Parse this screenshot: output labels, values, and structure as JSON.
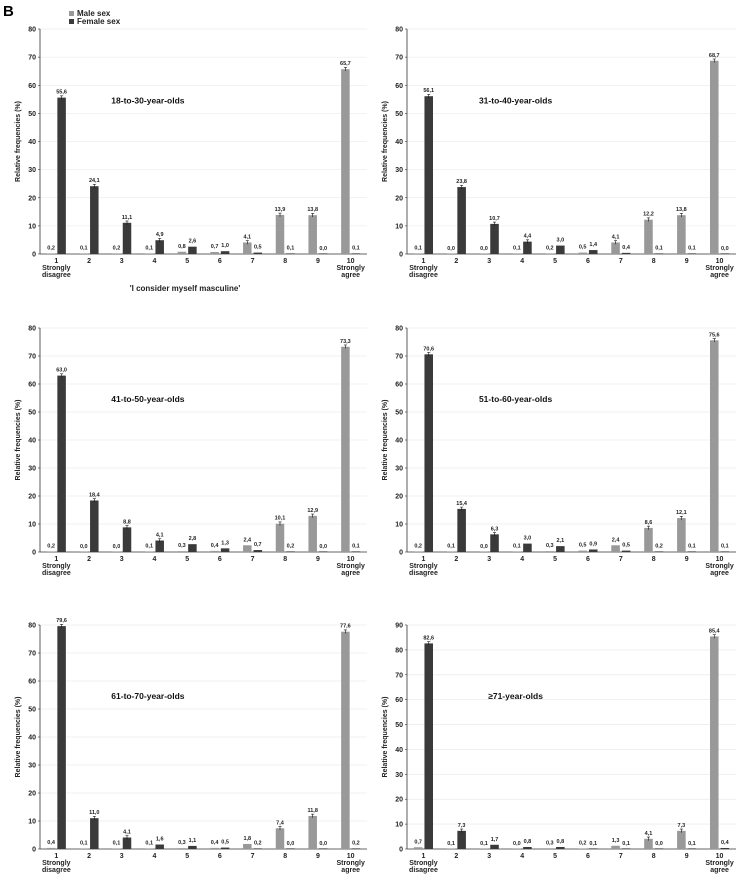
{
  "figure": {
    "panel_letter": "B",
    "legend": [
      {
        "label": "Male sex",
        "color": "#999999"
      },
      {
        "label": "Female sex",
        "color": "#3a3a3a"
      }
    ],
    "x_axis_label": "'I consider myself masculine'",
    "y_axis_label": "Relative frequencies (%)"
  },
  "chart_data": [
    {
      "type": "bar",
      "title": "18-to-30-year-olds",
      "categories": [
        "1",
        "2",
        "3",
        "4",
        "5",
        "6",
        "7",
        "8",
        "9",
        "10"
      ],
      "category_sublabels": {
        "1": "Strongly disagree",
        "10": "Strongly agree"
      },
      "series": [
        {
          "name": "Male sex",
          "labels": [
            "0,2",
            "0,1",
            "0,2",
            "0,1",
            "0,8",
            "0,7",
            "4,1",
            "13,9",
            "13,8",
            "65,7"
          ],
          "values": [
            0.2,
            0.1,
            0.2,
            0.1,
            0.8,
            0.7,
            4.1,
            13.9,
            13.8,
            65.7
          ]
        },
        {
          "name": "Female sex",
          "labels": [
            "55,6",
            "24,1",
            "11,1",
            "4,9",
            "2,6",
            "1,0",
            "0,5",
            "0,1",
            "0,0",
            "0,1"
          ],
          "values": [
            55.6,
            24.1,
            11.1,
            4.9,
            2.6,
            1.0,
            0.5,
            0.1,
            0.0,
            0.1
          ]
        }
      ],
      "ylabel": "Relative frequencies (%)",
      "ylim": [
        0,
        80
      ],
      "yticks": [
        "0",
        "10",
        "20",
        "30",
        "40",
        "50",
        "60",
        "70",
        "80"
      ]
    },
    {
      "type": "bar",
      "title": "31-to-40-year-olds",
      "categories": [
        "1",
        "2",
        "3",
        "4",
        "5",
        "6",
        "7",
        "8",
        "9",
        "10"
      ],
      "category_sublabels": {
        "1": "Strongly disagree",
        "10": "Strongly agree"
      },
      "series": [
        {
          "name": "Male sex",
          "labels": [
            "0,1",
            "0,0",
            "0,0",
            "0,1",
            "0,2",
            "0,5",
            "4,1",
            "12,2",
            "13,8",
            "68,7"
          ],
          "values": [
            0.1,
            0.0,
            0.0,
            0.1,
            0.2,
            0.5,
            4.1,
            12.2,
            13.8,
            68.7
          ]
        },
        {
          "name": "Female sex",
          "labels": [
            "56,1",
            "23,8",
            "10,7",
            "4,4",
            "3,0",
            "1,4",
            "0,4",
            "0,1",
            "0,1",
            "0,0"
          ],
          "values": [
            56.1,
            23.8,
            10.7,
            4.4,
            3.0,
            1.4,
            0.4,
            0.1,
            0.1,
            0.0
          ]
        }
      ],
      "ylabel": "Relative frequencies (%)",
      "ylim": [
        0,
        80
      ],
      "yticks": [
        "0",
        "10",
        "20",
        "30",
        "40",
        "50",
        "60",
        "70",
        "80"
      ]
    },
    {
      "type": "bar",
      "title": "41-to-50-year-olds",
      "categories": [
        "1",
        "2",
        "3",
        "4",
        "5",
        "6",
        "7",
        "8",
        "9",
        "10"
      ],
      "category_sublabels": {
        "1": "Strongly disagree",
        "10": "Strongly agree"
      },
      "series": [
        {
          "name": "Male sex",
          "labels": [
            "0,2",
            "0,0",
            "0,0",
            "0,1",
            "0,3",
            "0,4",
            "2,4",
            "10,1",
            "12,9",
            "73,3"
          ],
          "values": [
            0.2,
            0.0,
            0.0,
            0.1,
            0.3,
            0.4,
            2.4,
            10.1,
            12.9,
            73.3
          ]
        },
        {
          "name": "Female sex",
          "labels": [
            "63,0",
            "18,4",
            "8,8",
            "4,1",
            "2,8",
            "1,3",
            "0,7",
            "0,2",
            "0,0",
            "0,1"
          ],
          "values": [
            63.0,
            18.4,
            8.8,
            4.1,
            2.8,
            1.3,
            0.7,
            0.2,
            0.0,
            0.1
          ]
        }
      ],
      "ylabel": "Relative frequencies (%)",
      "ylim": [
        0,
        80
      ],
      "yticks": [
        "0",
        "10",
        "20",
        "30",
        "40",
        "50",
        "60",
        "70",
        "80"
      ]
    },
    {
      "type": "bar",
      "title": "51-to-60-year-olds",
      "categories": [
        "1",
        "2",
        "3",
        "4",
        "5",
        "6",
        "7",
        "8",
        "9",
        "10"
      ],
      "category_sublabels": {
        "1": "Strongly disagree",
        "10": "Strongly agree"
      },
      "series": [
        {
          "name": "Male sex",
          "labels": [
            "0,2",
            "0,1",
            "0,0",
            "0,1",
            "0,3",
            "0,5",
            "2,4",
            "8,6",
            "12,1",
            "75,6"
          ],
          "values": [
            0.2,
            0.1,
            0.0,
            0.1,
            0.3,
            0.5,
            2.4,
            8.6,
            12.1,
            75.6
          ]
        },
        {
          "name": "Female sex",
          "labels": [
            "70,6",
            "15,4",
            "6,3",
            "3,0",
            "2,1",
            "0,9",
            "0,5",
            "0,2",
            "0,1",
            "0,1"
          ],
          "values": [
            70.6,
            15.4,
            6.3,
            3.0,
            2.1,
            0.9,
            0.5,
            0.2,
            0.1,
            0.1
          ]
        }
      ],
      "ylabel": "Relative frequencies (%)",
      "ylim": [
        0,
        80
      ],
      "yticks": [
        "0",
        "10",
        "20",
        "30",
        "40",
        "50",
        "60",
        "70",
        "80"
      ]
    },
    {
      "type": "bar",
      "title": "61-to-70-year-olds",
      "categories": [
        "1",
        "2",
        "3",
        "4",
        "5",
        "6",
        "7",
        "8",
        "9",
        "10"
      ],
      "category_sublabels": {
        "1": "Strongly disagree",
        "10": "Strongly agree"
      },
      "series": [
        {
          "name": "Male sex",
          "labels": [
            "0,4",
            "0,1",
            "0,1",
            "0,1",
            "0,3",
            "0,4",
            "1,8",
            "7,4",
            "11,8",
            "77,6"
          ],
          "values": [
            0.4,
            0.1,
            0.1,
            0.1,
            0.3,
            0.4,
            1.8,
            7.4,
            11.8,
            77.6
          ]
        },
        {
          "name": "Female sex",
          "labels": [
            "79,6",
            "11,0",
            "4,1",
            "1,6",
            "1,1",
            "0,5",
            "0,2",
            "0,0",
            "0,0",
            "0,2"
          ],
          "values": [
            79.6,
            11.0,
            4.1,
            1.6,
            1.1,
            0.5,
            0.2,
            0.0,
            0.0,
            0.2
          ]
        }
      ],
      "ylabel": "Relative frequencies (%)",
      "ylim": [
        0,
        80
      ],
      "yticks": [
        "0",
        "10",
        "20",
        "30",
        "40",
        "50",
        "60",
        "70",
        "80"
      ]
    },
    {
      "type": "bar",
      "title": "≥71-year-olds",
      "categories": [
        "1",
        "2",
        "3",
        "4",
        "5",
        "6",
        "7",
        "8",
        "9",
        "10"
      ],
      "category_sublabels": {
        "1": "Strongly disagree",
        "10": "Strongly agree"
      },
      "series": [
        {
          "name": "Male sex",
          "labels": [
            "0,7",
            "0,1",
            "0,1",
            "0,0",
            "0,3",
            "0,2",
            "1,3",
            "4,1",
            "7,3",
            "85,4"
          ],
          "values": [
            0.7,
            0.1,
            0.1,
            0.0,
            0.3,
            0.2,
            1.3,
            4.1,
            7.3,
            85.4
          ]
        },
        {
          "name": "Female sex",
          "labels": [
            "82,6",
            "7,3",
            "1,7",
            "0,8",
            "0,8",
            "0,1",
            "0,1",
            "0,0",
            "0,1",
            "0,4"
          ],
          "values": [
            82.6,
            7.3,
            1.7,
            0.8,
            0.8,
            0.1,
            0.1,
            0.0,
            0.1,
            0.4
          ]
        }
      ],
      "ylabel": "Relative frequencies (%)",
      "ylim": [
        0,
        90
      ],
      "yticks": [
        "0",
        "10",
        "20",
        "30",
        "40",
        "50",
        "60",
        "70",
        "80",
        "90"
      ]
    }
  ]
}
